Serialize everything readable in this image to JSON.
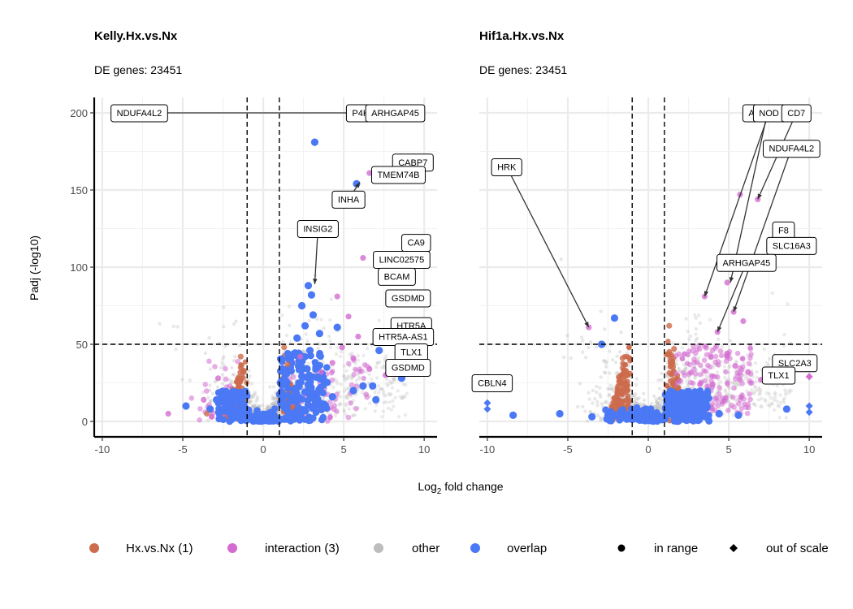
{
  "chart_data": {
    "type": "scatter",
    "xlabel": "Log2 fold change",
    "xlabel_main": "Log",
    "xlabel_sub": "2",
    "xlabel_rest": " fold change",
    "ylabel": "Padj (-log10)",
    "xlim": [
      -10.5,
      10.8
    ],
    "ylim": [
      -10,
      210
    ],
    "xticks": [
      -10,
      -5,
      0,
      5,
      10
    ],
    "yticks": [
      0,
      50,
      100,
      150,
      200
    ],
    "xtick_labels": [
      "-10",
      "-5",
      "0",
      "5",
      "10"
    ],
    "ytick_labels": [
      "0",
      "50",
      "100",
      "150",
      "200"
    ],
    "grid": true,
    "vlines": [
      -1,
      1
    ],
    "hline": 50,
    "legend_position": "bottom",
    "colors": {
      "Hx.vs.Nx (1)": "#cd6b4c",
      "interaction (3)": "#d36bd1",
      "other": "#bdbdbd",
      "overlap": "#4b78f5"
    },
    "legend": {
      "color": [
        "Hx.vs.Nx (1)",
        "interaction (3)",
        "other",
        "overlap"
      ],
      "shape": [
        "in range",
        "out of scale"
      ]
    },
    "panels": [
      {
        "title": "Kelly.Hx.vs.Nx",
        "subtitle": "DE genes: 23451",
        "highlight_points": [
          {
            "x": 3.2,
            "y": 181,
            "group": "overlap"
          },
          {
            "x": 5.8,
            "y": 154,
            "group": "overlap"
          },
          {
            "x": 2.8,
            "y": 88,
            "group": "overlap"
          },
          {
            "x": 3.0,
            "y": 82,
            "group": "overlap"
          },
          {
            "x": 2.4,
            "y": 75,
            "group": "overlap"
          },
          {
            "x": 3.1,
            "y": 69,
            "group": "overlap"
          },
          {
            "x": 2.6,
            "y": 62,
            "group": "overlap"
          },
          {
            "x": 4.6,
            "y": 61,
            "group": "overlap"
          },
          {
            "x": 3.5,
            "y": 57,
            "group": "overlap"
          },
          {
            "x": 2.1,
            "y": 54,
            "group": "overlap"
          },
          {
            "x": 2.9,
            "y": 46,
            "group": "overlap"
          },
          {
            "x": 7.2,
            "y": 46,
            "group": "overlap"
          },
          {
            "x": 8.6,
            "y": 28,
            "group": "overlap"
          },
          {
            "x": 6.2,
            "y": 23,
            "group": "overlap"
          },
          {
            "x": 6.8,
            "y": 23,
            "group": "overlap"
          },
          {
            "x": 5.6,
            "y": 20,
            "group": "overlap"
          },
          {
            "x": 7.0,
            "y": 14,
            "group": "overlap"
          },
          {
            "x": 4.3,
            "y": 16,
            "group": "overlap"
          },
          {
            "x": 3.8,
            "y": 25,
            "group": "overlap"
          },
          {
            "x": -4.8,
            "y": 10,
            "group": "overlap"
          },
          {
            "x": -3.3,
            "y": 8,
            "group": "overlap"
          },
          {
            "x": -2.9,
            "y": 14,
            "group": "overlap"
          },
          {
            "x": -2.3,
            "y": 19,
            "group": "overlap"
          },
          {
            "x": -2.2,
            "y": 9,
            "group": "overlap"
          },
          {
            "x": 6.2,
            "y": 106,
            "group": "interaction (3)"
          },
          {
            "x": 6.6,
            "y": 161,
            "group": "interaction (3)"
          },
          {
            "x": 4.6,
            "y": 81,
            "group": "interaction (3)"
          },
          {
            "x": 5.3,
            "y": 68,
            "group": "interaction (3)"
          },
          {
            "x": 5.9,
            "y": 55,
            "group": "interaction (3)"
          },
          {
            "x": 4.9,
            "y": 48,
            "group": "interaction (3)"
          },
          {
            "x": 5.6,
            "y": 41,
            "group": "interaction (3)"
          },
          {
            "x": 4.3,
            "y": 38,
            "group": "interaction (3)"
          },
          {
            "x": 3.6,
            "y": 32,
            "group": "interaction (3)"
          },
          {
            "x": 2.3,
            "y": 42,
            "group": "interaction (3)"
          },
          {
            "x": 6.6,
            "y": 34,
            "group": "interaction (3)"
          },
          {
            "x": 7.6,
            "y": 30,
            "group": "interaction (3)"
          },
          {
            "x": -2.8,
            "y": 28,
            "group": "interaction (3)"
          },
          {
            "x": -3.7,
            "y": 14,
            "group": "interaction (3)"
          },
          {
            "x": -5.9,
            "y": 5,
            "group": "interaction (3)"
          },
          {
            "x": -3.2,
            "y": 3,
            "group": "interaction (3)"
          },
          {
            "x": -1.4,
            "y": 42,
            "group": "Hx.vs.Nx (1)"
          },
          {
            "x": -1.2,
            "y": 33,
            "group": "Hx.vs.Nx (1)"
          },
          {
            "x": 1.3,
            "y": 48,
            "group": "Hx.vs.Nx (1)"
          },
          {
            "x": 1.5,
            "y": 37,
            "group": "Hx.vs.Nx (1)"
          },
          {
            "x": -3.5,
            "y": 5,
            "group": "Hx.vs.Nx (1)"
          }
        ],
        "labels": [
          {
            "text": "NDUFA4L2",
            "x": -7.7,
            "y": 200,
            "px": 8.5,
            "py": 200
          },
          {
            "text": "P4HA2",
            "x": 6.4,
            "y": 200,
            "px": 8.7,
            "py": 200
          },
          {
            "text": "ARHGAP45",
            "x": 8.2,
            "y": 200,
            "px": 8.6,
            "py": 200
          },
          {
            "text": "CABP7",
            "x": 9.3,
            "y": 168
          },
          {
            "text": "TMEM74B",
            "x": 8.4,
            "y": 160,
            "px": 8.0,
            "py": 155
          },
          {
            "text": "INHA",
            "x": 5.3,
            "y": 144,
            "px": 6.0,
            "py": 155
          },
          {
            "text": "INSIG2",
            "x": 3.4,
            "y": 125,
            "px": 3.2,
            "py": 89
          },
          {
            "text": "CA9",
            "x": 9.5,
            "y": 116
          },
          {
            "text": "LINC02575",
            "x": 8.6,
            "y": 105
          },
          {
            "text": "BCAM",
            "x": 8.3,
            "y": 94
          },
          {
            "text": "GSDMD",
            "x": 9.0,
            "y": 80
          },
          {
            "text": "HTR5A",
            "x": 9.2,
            "y": 62
          },
          {
            "text": "HTR5A-AS1",
            "x": 8.7,
            "y": 55
          },
          {
            "text": "TLX1",
            "x": 9.2,
            "y": 45
          },
          {
            "text": "GSDMD",
            "x": 9.0,
            "y": 35
          }
        ]
      },
      {
        "title": "Hif1a.Hx.vs.Nx",
        "subtitle": "DE genes: 23451",
        "highlight_points": [
          {
            "x": -2.1,
            "y": 67,
            "group": "overlap"
          },
          {
            "x": -2.9,
            "y": 50,
            "group": "overlap"
          },
          {
            "x": -8.4,
            "y": 4,
            "group": "overlap"
          },
          {
            "x": -5.5,
            "y": 5,
            "group": "overlap"
          },
          {
            "x": -3.5,
            "y": 3,
            "group": "overlap"
          },
          {
            "x": 8.6,
            "y": 8,
            "group": "overlap"
          },
          {
            "x": 4.4,
            "y": 5,
            "group": "overlap"
          },
          {
            "x": 3.2,
            "y": 7,
            "group": "overlap"
          },
          {
            "x": 2.6,
            "y": 14,
            "group": "overlap"
          },
          {
            "x": 5.6,
            "y": 4,
            "group": "overlap"
          },
          {
            "x": -10,
            "y": 8,
            "group": "overlap",
            "out_of_scale": true
          },
          {
            "x": -10,
            "y": 12,
            "group": "overlap",
            "out_of_scale": true
          },
          {
            "x": 10,
            "y": 6,
            "group": "overlap",
            "out_of_scale": true
          },
          {
            "x": 10,
            "y": 10,
            "group": "overlap",
            "out_of_scale": true
          },
          {
            "x": -3.7,
            "y": 61,
            "group": "interaction (3)"
          },
          {
            "x": 5.9,
            "y": 65,
            "group": "interaction (3)"
          },
          {
            "x": 5.3,
            "y": 71,
            "group": "interaction (3)"
          },
          {
            "x": 4.9,
            "y": 90,
            "group": "interaction (3)"
          },
          {
            "x": 3.5,
            "y": 81,
            "group": "interaction (3)"
          },
          {
            "x": 5.7,
            "y": 147,
            "group": "interaction (3)"
          },
          {
            "x": 6.8,
            "y": 144,
            "group": "interaction (3)"
          },
          {
            "x": 4.3,
            "y": 58,
            "group": "interaction (3)"
          },
          {
            "x": 4.9,
            "y": 44,
            "group": "interaction (3)"
          },
          {
            "x": 5.4,
            "y": 36,
            "group": "interaction (3)"
          },
          {
            "x": 6.2,
            "y": 32,
            "group": "interaction (3)"
          },
          {
            "x": 7.0,
            "y": 27,
            "group": "interaction (3)"
          },
          {
            "x": 4.0,
            "y": 24,
            "group": "interaction (3)"
          },
          {
            "x": 10,
            "y": 29,
            "group": "interaction (3)",
            "out_of_scale": true
          },
          {
            "x": -1.6,
            "y": 41,
            "group": "Hx.vs.Nx (1)"
          },
          {
            "x": -1.4,
            "y": 33,
            "group": "Hx.vs.Nx (1)"
          },
          {
            "x": 1.3,
            "y": 62,
            "group": "Hx.vs.Nx (1)"
          },
          {
            "x": 1.6,
            "y": 47,
            "group": "Hx.vs.Nx (1)"
          },
          {
            "x": 1.4,
            "y": 36,
            "group": "Hx.vs.Nx (1)"
          }
        ],
        "labels": [
          {
            "text": "HRK",
            "x": -8.8,
            "y": 165,
            "px": -3.7,
            "py": 61
          },
          {
            "text": "AFAP1L2",
            "x": 7.4,
            "y": 200,
            "px": 5.1,
            "py": 90
          },
          {
            "text": "NOD",
            "x": 7.5,
            "y": 200,
            "px": 3.5,
            "py": 81
          },
          {
            "text": "CD7",
            "x": 9.2,
            "y": 200,
            "px": 6.8,
            "py": 144
          },
          {
            "text": "NDUFA4L2",
            "x": 8.9,
            "y": 177,
            "px": 5.3,
            "py": 71
          },
          {
            "text": "F8",
            "x": 8.4,
            "y": 124
          },
          {
            "text": "SLC16A3",
            "x": 8.9,
            "y": 114
          },
          {
            "text": "ARHGAP45",
            "x": 6.1,
            "y": 103,
            "px": 4.3,
            "py": 58
          },
          {
            "text": "SLC2A3",
            "x": 9.1,
            "y": 38
          },
          {
            "text": "TLX1",
            "x": 8.1,
            "y": 30
          },
          {
            "text": "CBLN4",
            "x": -9.7,
            "y": 25
          }
        ]
      }
    ]
  }
}
